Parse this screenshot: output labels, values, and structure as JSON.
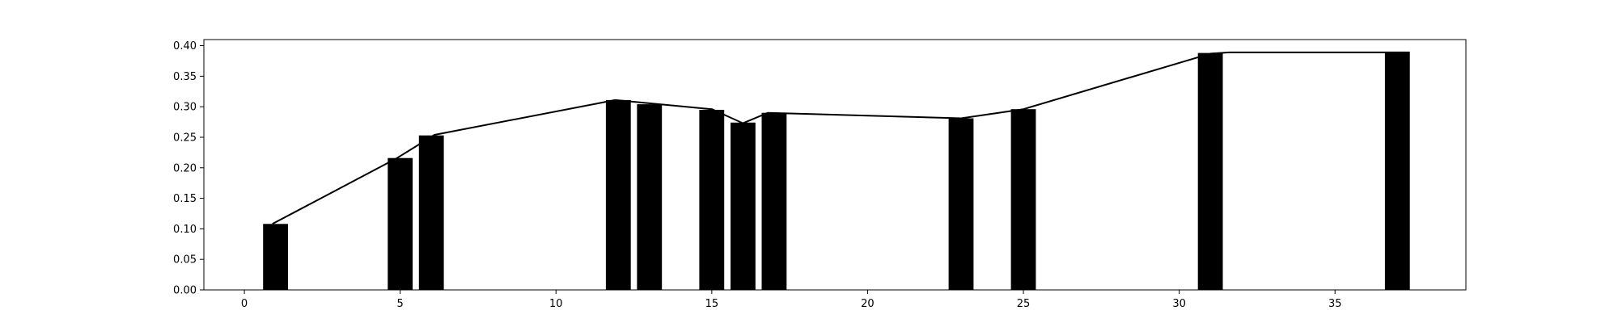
{
  "chart_data": {
    "type": "bar",
    "title": "",
    "xlabel": "",
    "ylabel": "",
    "xlim": [
      -1.3,
      39.2
    ],
    "ylim": [
      0,
      0.41
    ],
    "xticks": [
      0,
      5,
      10,
      15,
      20,
      25,
      30,
      35
    ],
    "yticks": [
      0.0,
      0.05,
      0.1,
      0.15,
      0.2,
      0.25,
      0.3,
      0.35,
      0.4
    ],
    "ytick_format": 2,
    "grid": false,
    "bar_width": 0.8,
    "bar_color": "#000000",
    "line_color": "#000000",
    "x": [
      1,
      5,
      6,
      12,
      13,
      15,
      16,
      17,
      23,
      25,
      31,
      37
    ],
    "values": [
      0.108,
      0.216,
      0.253,
      0.311,
      0.304,
      0.295,
      0.274,
      0.29,
      0.281,
      0.296,
      0.388,
      0.388
    ],
    "line": {
      "x": [
        0.9,
        4.9,
        6.1,
        11.9,
        15.0,
        16.0,
        16.8,
        23.0,
        25.0,
        31.0,
        31.6,
        37.4
      ],
      "values": [
        0.108,
        0.216,
        0.254,
        0.311,
        0.296,
        0.273,
        0.29,
        0.281,
        0.296,
        0.387,
        0.389,
        0.389
      ]
    }
  }
}
